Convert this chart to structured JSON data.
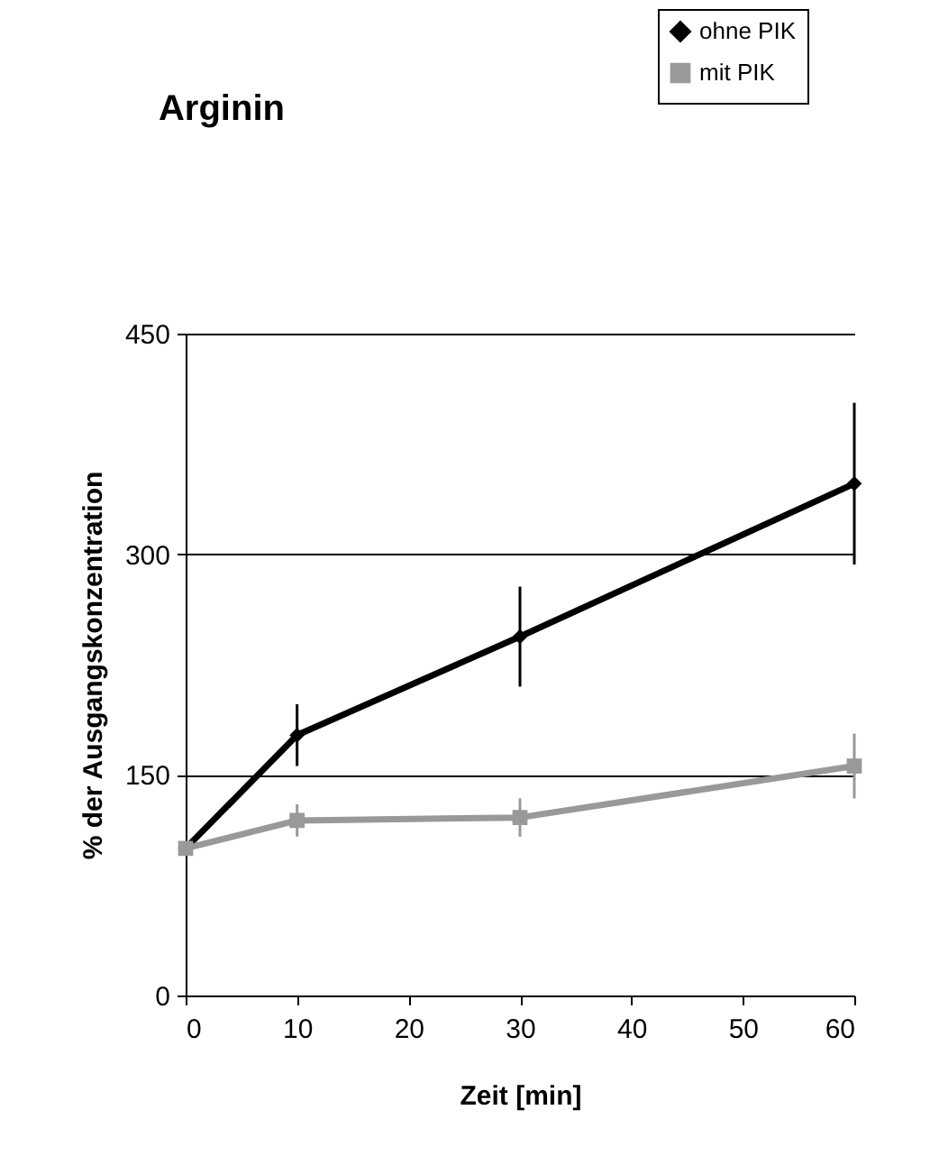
{
  "chart_data": {
    "type": "line",
    "title": "Arginin",
    "xlabel": "Zeit [min]",
    "ylabel": "% der Ausgangskonzentration",
    "x": [
      0,
      10,
      30,
      60
    ],
    "series": [
      {
        "name": "ohne PIK",
        "color": "#000000",
        "marker": "diamond",
        "values": [
          100,
          177,
          244,
          348
        ],
        "errors": [
          null,
          21,
          34,
          55
        ]
      },
      {
        "name": "mit PIK",
        "color": "#999999",
        "marker": "square",
        "values": [
          100,
          119,
          121,
          156
        ],
        "errors": [
          null,
          11,
          13,
          22
        ]
      }
    ],
    "xlim": [
      0,
      60
    ],
    "xticks": [
      0,
      10,
      20,
      30,
      40,
      50,
      60
    ],
    "ylim": [
      0,
      450
    ],
    "yticks": [
      0,
      150,
      300,
      450
    ],
    "grid": "y",
    "legend": "top right",
    "line_style": "solid"
  }
}
